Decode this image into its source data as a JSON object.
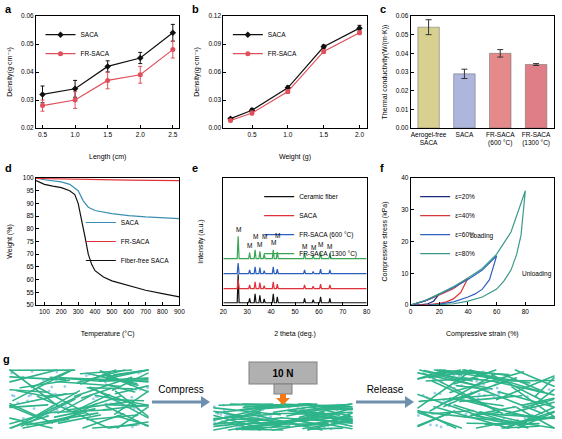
{
  "chart_data": [
    {
      "title": "a",
      "type": "line",
      "x_label": "Length (cm)",
      "y_label": "Density(g·cm⁻³)",
      "x": [
        0.5,
        1.0,
        1.5,
        2.0,
        2.5
      ],
      "series": [
        {
          "name": "SACA",
          "color": "#111111",
          "marker": "diamond",
          "values": [
            0.032,
            0.034,
            0.042,
            0.045,
            0.054
          ],
          "errors": [
            0.003,
            0.003,
            0.002,
            0.002,
            0.003
          ]
        },
        {
          "name": "FR-SACA",
          "color": "#e0505a",
          "marker": "circle",
          "values": [
            0.028,
            0.03,
            0.037,
            0.039,
            0.048
          ],
          "errors": [
            0.002,
            0.003,
            0.003,
            0.003,
            0.003
          ]
        }
      ],
      "xlim": [
        0.4,
        2.6
      ],
      "xticks": [
        0.5,
        {
          "value": 1,
          "label": "1.0"
        },
        1.5,
        {
          "value": 2,
          "label": "2.0"
        },
        2.5
      ],
      "ylim": [
        0.02,
        0.06
      ],
      "yticks": [
        0.02,
        0.03,
        0.04,
        0.05,
        0.06
      ],
      "legend": "upper left"
    },
    {
      "title": "b",
      "type": "line",
      "x_label": "Weight (g)",
      "y_label": "Density(g·cm⁻³)",
      "x": [
        0.2,
        0.5,
        1.0,
        1.5,
        2.0
      ],
      "series": [
        {
          "name": "SACA",
          "color": "#111111",
          "marker": "diamond",
          "values": [
            0.01,
            0.019,
            0.043,
            0.087,
            0.107
          ],
          "errors": [
            0.001,
            0.002,
            0.002,
            0.002,
            0.003
          ]
        },
        {
          "name": "FR-SACA",
          "color": "#e0505a",
          "marker": "circle",
          "values": [
            0.008,
            0.016,
            0.039,
            0.082,
            0.102
          ],
          "errors": [
            0.001,
            0.002,
            0.002,
            0.002,
            0.002
          ]
        }
      ],
      "xlim": [
        0.1,
        2.1
      ],
      "xticks": [
        0.5,
        {
          "value": 1,
          "label": "1.0"
        },
        1.5,
        {
          "value": 2,
          "label": "2.0"
        }
      ],
      "ylim": [
        0,
        0.12
      ],
      "yticks": [
        {
          "value": 0,
          "label": "0.00"
        },
        0.03,
        0.06,
        0.09,
        0.12
      ],
      "legend": "upper left"
    },
    {
      "title": "c",
      "type": "bar",
      "y_label": "Thermal conductivity(W/(m·K))",
      "categories": [
        "Aerogel-free SACA",
        "SACA",
        "FR-SACA (600 °C)",
        "FR-SACA (1300 °C)"
      ],
      "values": [
        0.054,
        0.029,
        0.04,
        0.034
      ],
      "errors": [
        0.004,
        0.0025,
        0.002,
        0.0005
      ],
      "colors": [
        "#d8d090",
        "#aeb6de",
        "#e58a8a",
        "#e07e88"
      ],
      "ylim": [
        0,
        0.06
      ],
      "yticks": [
        {
          "value": 0,
          "label": "0.00"
        },
        0.01,
        0.02,
        0.03,
        0.04,
        0.05,
        0.06
      ]
    },
    {
      "title": "d",
      "type": "line",
      "x_label": "Temperature (°C)",
      "y_label": "Weight (%)",
      "series": [
        {
          "name": "SACA",
          "color": "#3a8fb0",
          "x": [
            50,
            100,
            200,
            250,
            300,
            330,
            360,
            400,
            500,
            600,
            700,
            800,
            900
          ],
          "values": [
            100,
            99.3,
            98.5,
            97.5,
            95,
            91,
            88.5,
            87.2,
            86,
            85.2,
            84.7,
            84.3,
            84
          ]
        },
        {
          "name": "FR-SACA",
          "color": "#e0303a",
          "x": [
            50,
            200,
            400,
            600,
            900
          ],
          "values": [
            99.8,
            99.6,
            99.4,
            99.2,
            99
          ]
        },
        {
          "name": "Fiber-free SACA",
          "color": "#111111",
          "x": [
            50,
            100,
            150,
            200,
            250,
            280,
            300,
            320,
            340,
            360,
            380,
            400,
            450,
            500,
            600,
            700,
            800,
            900
          ],
          "values": [
            99,
            97.5,
            96.8,
            96.2,
            95,
            93.5,
            90,
            84,
            77,
            70,
            66,
            63.5,
            61,
            59.5,
            57.5,
            55.8,
            54.5,
            53.2
          ]
        }
      ],
      "xlim": [
        50,
        900
      ],
      "xticks": [
        100,
        200,
        300,
        400,
        500,
        600,
        700,
        800,
        900
      ],
      "ylim": [
        50,
        100
      ],
      "yticks": [
        50,
        55,
        60,
        65,
        70,
        75,
        80,
        85,
        90,
        95,
        100
      ],
      "legend": "right"
    },
    {
      "title": "e",
      "type": "line",
      "x_label": "2 theta (deg.)",
      "y_label": "Intensity (a.u.)",
      "tick_labels": "x",
      "x": [
        20,
        25.8,
        26.2,
        26.6,
        30.6,
        31,
        31.4,
        32.9,
        33.3,
        33.7,
        34.9,
        35.3,
        35.7,
        36.7,
        37.1,
        37.5,
        40.5,
        40.9,
        41.3,
        42.2,
        42.6,
        43,
        53.6,
        54,
        54.4,
        57.2,
        57.6,
        58,
        60.3,
        60.7,
        61.1,
        64.2,
        64.6,
        65,
        80
      ],
      "series": [
        {
          "name": "Ceramic fiber",
          "color": "#111111",
          "values": [
            3,
            3,
            41,
            3,
            3,
            9,
            3,
            3,
            15,
            3,
            3,
            13,
            3,
            3,
            8,
            3,
            3,
            15,
            3,
            3,
            11,
            3,
            3,
            9,
            3,
            3,
            7,
            3,
            3,
            11,
            3,
            3,
            9,
            3,
            3
          ]
        },
        {
          "name": "SACA",
          "color": "#e0303a",
          "values": [
            22,
            22,
            34,
            22,
            22,
            27,
            22,
            22,
            31,
            22,
            22,
            30,
            22,
            22,
            26,
            22,
            22,
            31,
            22,
            22,
            28,
            22,
            22,
            27,
            22,
            22,
            25,
            22,
            22,
            28,
            22,
            22,
            27,
            22,
            22
          ]
        },
        {
          "name": "FR-SACA (600 °C)",
          "color": "#2a5fc0",
          "values": [
            42,
            42,
            56,
            42,
            42,
            47,
            42,
            42,
            51,
            42,
            42,
            50,
            42,
            42,
            46,
            42,
            42,
            51,
            42,
            42,
            48,
            42,
            42,
            47,
            42,
            42,
            45,
            42,
            42,
            48,
            42,
            42,
            47,
            42,
            42
          ]
        },
        {
          "name": "FR-SACA (1300 °C)",
          "color": "#3aa655",
          "values": [
            62,
            62,
            92,
            62,
            62,
            70,
            62,
            62,
            74,
            62,
            62,
            72,
            62,
            62,
            68,
            62,
            62,
            74,
            62,
            62,
            71,
            62,
            62,
            69,
            62,
            62,
            67,
            62,
            62,
            71,
            62,
            62,
            69,
            62,
            62
          ]
        }
      ],
      "annotations": [
        {
          "text": "M",
          "x": 26.2,
          "y": 94
        },
        {
          "text": "M",
          "x": 31,
          "y": 72
        },
        {
          "text": "M",
          "x": 33.3,
          "y": 84
        },
        {
          "text": "M",
          "x": 35.3,
          "y": 74
        },
        {
          "text": "M",
          "x": 37.1,
          "y": 84
        },
        {
          "text": "M",
          "x": 40.9,
          "y": 76
        },
        {
          "text": "M",
          "x": 42.6,
          "y": 86
        },
        {
          "text": "M",
          "x": 54,
          "y": 71
        },
        {
          "text": "M",
          "x": 57.6,
          "y": 69
        },
        {
          "text": "M",
          "x": 60.7,
          "y": 73
        },
        {
          "text": "M",
          "x": 64.6,
          "y": 71
        }
      ],
      "xlim": [
        20,
        80
      ],
      "xticks": [
        20,
        30,
        40,
        50,
        60,
        70,
        80
      ],
      "ylim": [
        0,
        170
      ],
      "legend": "upper right"
    },
    {
      "title": "f",
      "type": "line",
      "x_label": "Compressive strain (%)",
      "y_label": "Compressive stress (kPa)",
      "series": [
        {
          "name": "ε=20%",
          "color": "#1a2a80",
          "x": [
            0,
            5,
            10,
            15,
            20,
            16,
            12,
            8,
            4,
            2
          ],
          "values": [
            0,
            0.6,
            1.3,
            2.2,
            3.5,
            1.2,
            0.4,
            0.1,
            0,
            0
          ]
        },
        {
          "name": "ε=40%",
          "color": "#d9383a",
          "x": [
            0,
            10,
            20,
            30,
            40,
            35,
            30,
            25,
            20,
            15,
            10,
            5
          ],
          "values": [
            0,
            1.3,
            3.2,
            5.2,
            8.5,
            4,
            2,
            1,
            0.5,
            0.2,
            0,
            0
          ]
        },
        {
          "name": "ε=60%",
          "color": "#3060c0",
          "x": [
            0,
            10,
            20,
            30,
            40,
            50,
            60,
            55,
            50,
            45,
            40,
            30,
            20,
            12
          ],
          "values": [
            0,
            1.3,
            3.4,
            5.5,
            8,
            11,
            15.5,
            8,
            5,
            3.5,
            2.5,
            1,
            0.3,
            0
          ]
        },
        {
          "name": "ε=80%",
          "color": "#3a9a8a",
          "x": [
            0,
            10,
            20,
            30,
            40,
            50,
            60,
            70,
            80,
            77,
            74,
            70,
            65,
            60,
            50,
            40,
            30,
            20,
            15
          ],
          "values": [
            0,
            1.4,
            3.5,
            5.8,
            8.5,
            11.5,
            16,
            23,
            36,
            22,
            16,
            11,
            7.5,
            5,
            2.5,
            1.2,
            0.4,
            0.05,
            0
          ]
        }
      ],
      "annotations": [
        {
          "text": "Loading",
          "x": 50,
          "y": 20
        },
        {
          "text": "Unloading",
          "x": 88,
          "y": 8
        }
      ],
      "xlim": [
        0,
        100
      ],
      "xticks": [
        0,
        20,
        40,
        60,
        80
      ],
      "ylim": [
        0,
        40
      ],
      "yticks": [
        0,
        10,
        20,
        30,
        40
      ],
      "legend": "upper left"
    }
  ],
  "diagram": {
    "title": "g",
    "steps": [
      "Compress",
      "Release"
    ],
    "load": "10 N"
  }
}
